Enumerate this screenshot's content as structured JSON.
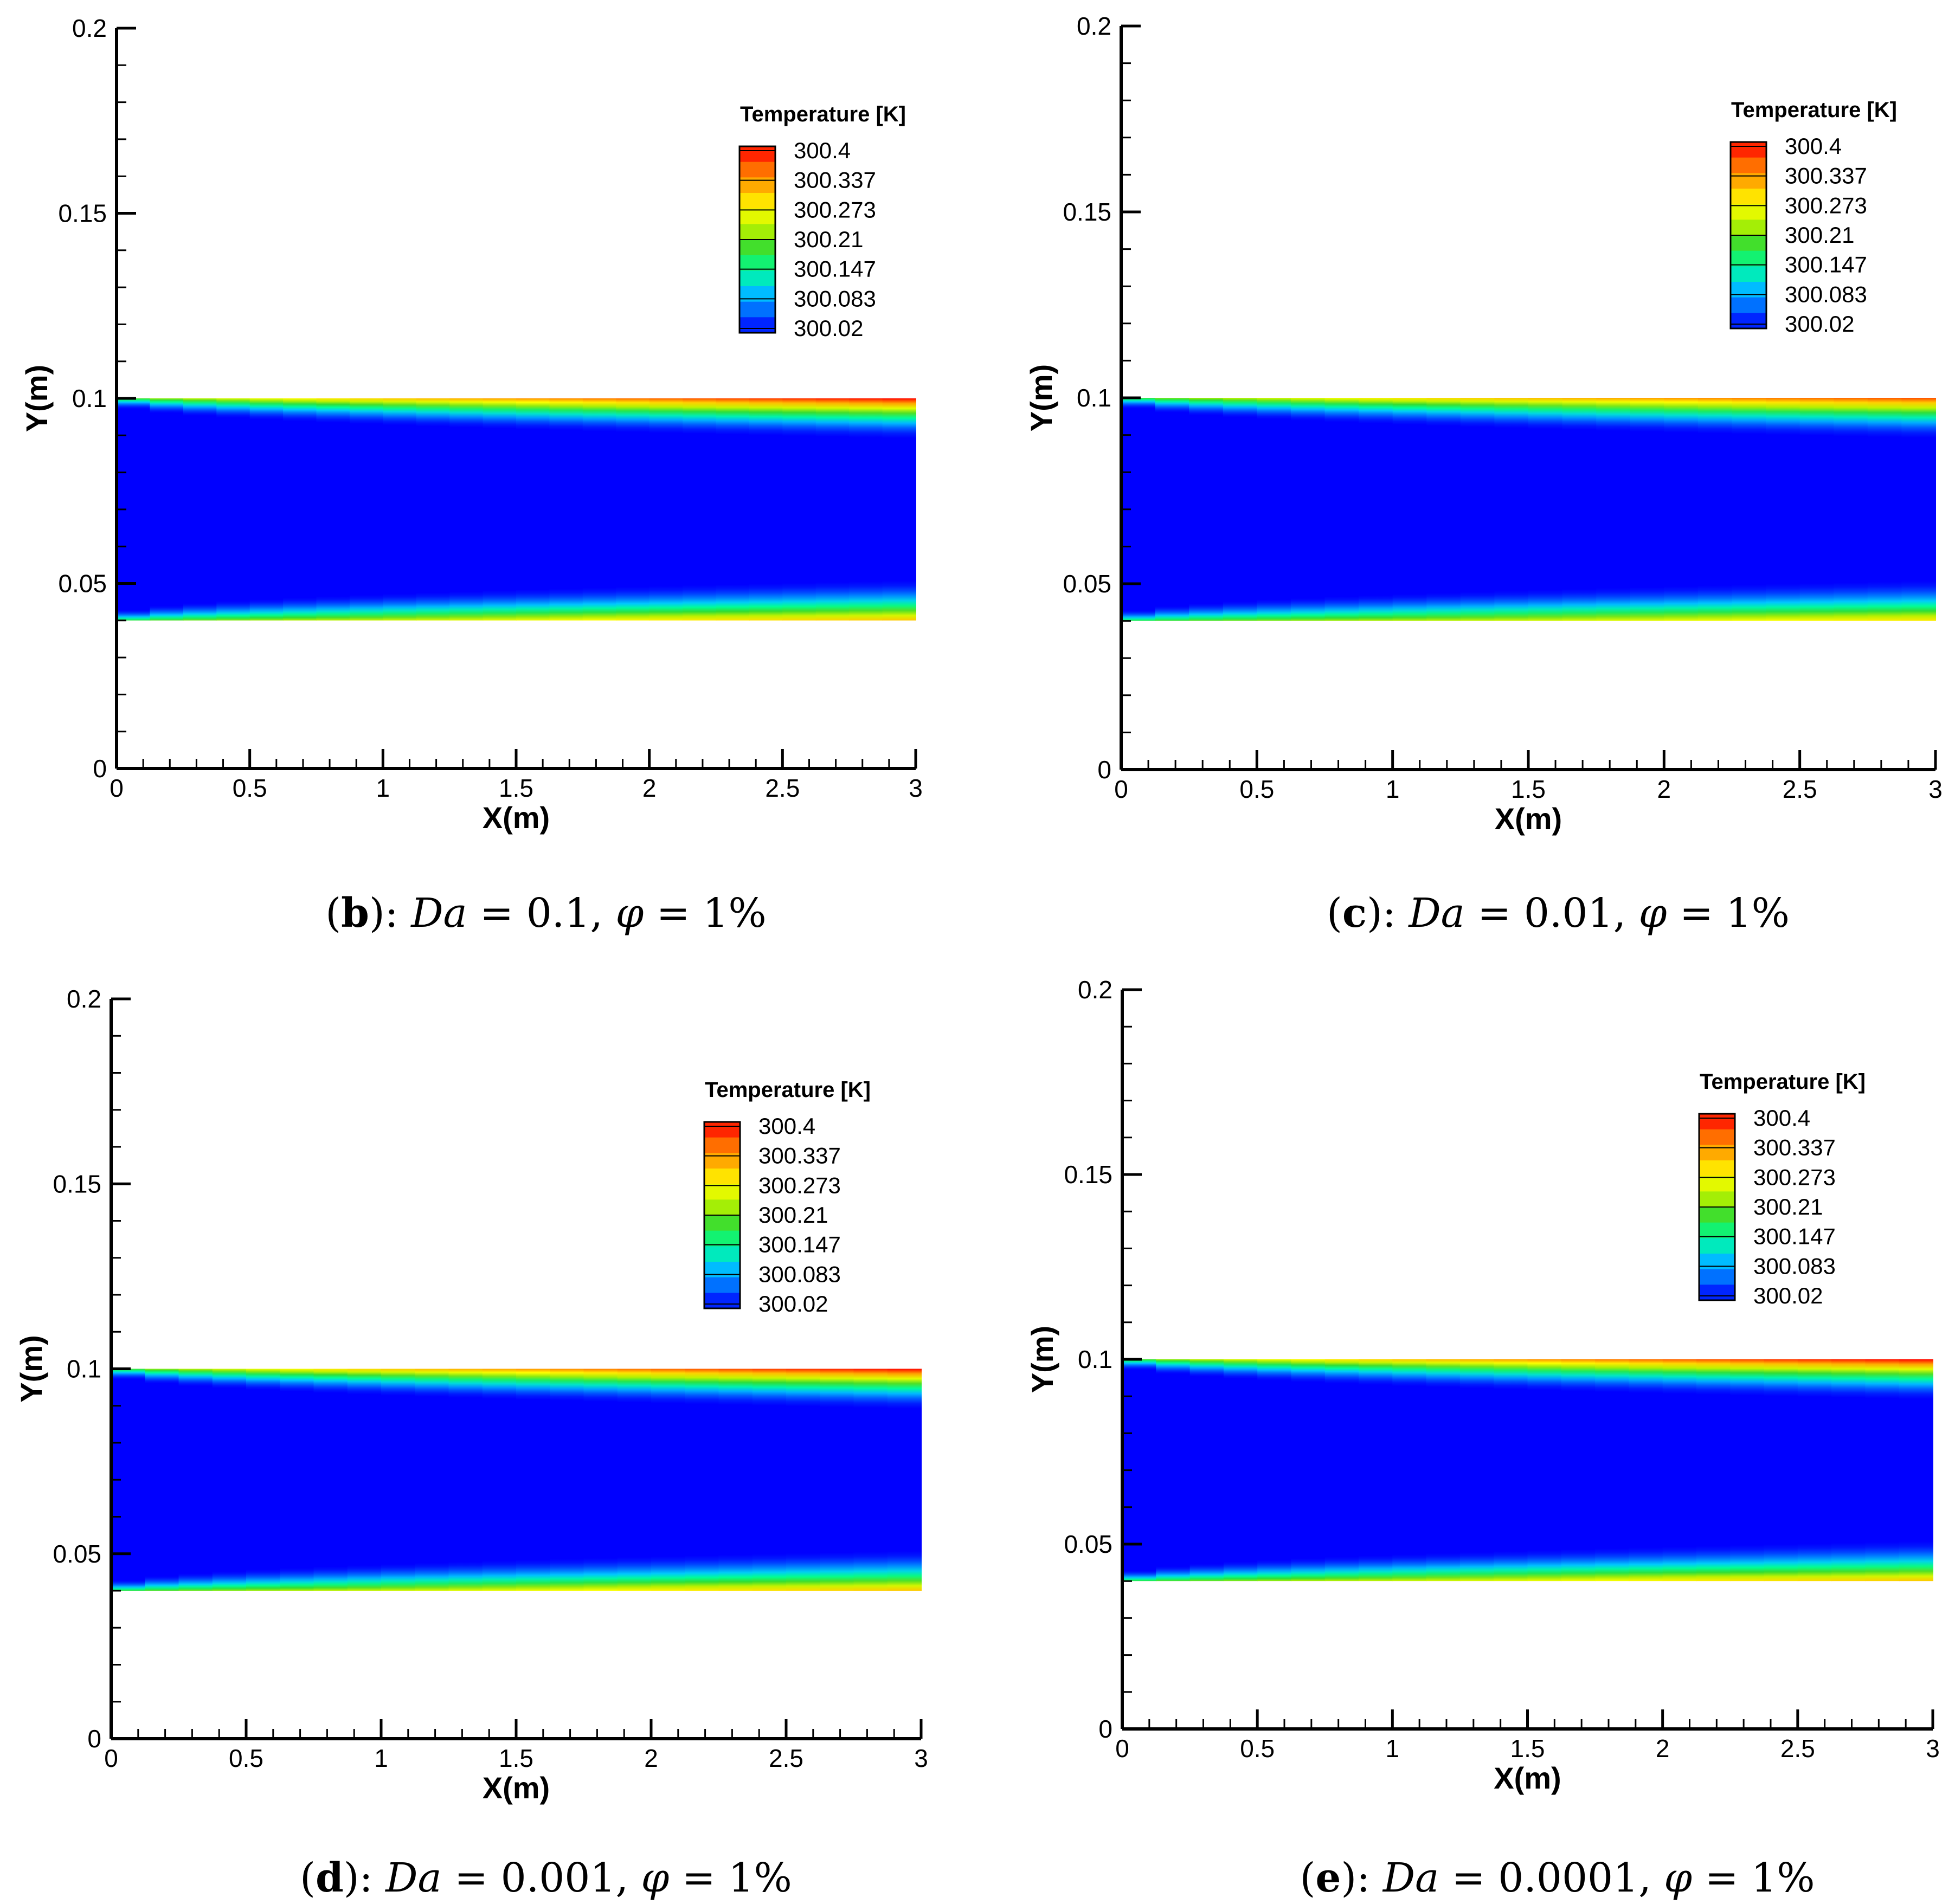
{
  "chart_data": [
    {
      "type": "heatmap",
      "panel": "b",
      "caption": {
        "panel_label": "b",
        "da_label": "Da",
        "da_value": "0.1",
        "phi_label": "φ",
        "phi_value": "1%"
      },
      "xlabel": "X(m)",
      "ylabel": "Y(m)",
      "xlim": [
        0,
        3
      ],
      "ylim": [
        0,
        0.2
      ],
      "xticks": [
        "0",
        "0.5",
        "1",
        "1.5",
        "2",
        "2.5",
        "3"
      ],
      "yticks": [
        "0",
        "0.05",
        "0.1",
        "0.15",
        "0.2"
      ],
      "domain_x": [
        0,
        3
      ],
      "domain_y": [
        0.04,
        0.1
      ],
      "field": {
        "t_min": 300.0,
        "t_max": 300.4,
        "wall_temp_inlet": 300.15,
        "wall_temp_outlet_top": 300.4,
        "wall_temp_outlet_bottom": 300.3,
        "core_temp": 300.0
      },
      "legend": {
        "title": "Temperature [K]",
        "levels": [
          "300.4",
          "300.337",
          "300.273",
          "300.21",
          "300.147",
          "300.083",
          "300.02"
        ]
      }
    },
    {
      "type": "heatmap",
      "panel": "c",
      "caption": {
        "panel_label": "c",
        "da_label": "Da",
        "da_value": "0.01",
        "phi_label": "φ",
        "phi_value": "1%"
      },
      "xlabel": "X(m)",
      "ylabel": "Y(m)",
      "xlim": [
        0,
        3
      ],
      "ylim": [
        0,
        0.2
      ],
      "xticks": [
        "0",
        "0.5",
        "1",
        "1.5",
        "2",
        "2.5",
        "3"
      ],
      "yticks": [
        "0",
        "0.05",
        "0.1",
        "0.15",
        "0.2"
      ],
      "domain_x": [
        0,
        3
      ],
      "domain_y": [
        0.04,
        0.1
      ],
      "field": {
        "t_min": 300.0,
        "t_max": 300.4,
        "wall_temp_inlet": 300.15,
        "wall_temp_outlet_top": 300.37,
        "wall_temp_outlet_bottom": 300.28,
        "core_temp": 300.0
      },
      "legend": {
        "title": "Temperature [K]",
        "levels": [
          "300.4",
          "300.337",
          "300.273",
          "300.21",
          "300.147",
          "300.083",
          "300.02"
        ]
      }
    },
    {
      "type": "heatmap",
      "panel": "d",
      "caption": {
        "panel_label": "d",
        "da_label": "Da",
        "da_value": "0.001",
        "phi_label": "φ",
        "phi_value": "1%"
      },
      "xlabel": "X(m)",
      "ylabel": "Y(m)",
      "xlim": [
        0,
        3
      ],
      "ylim": [
        0,
        0.2
      ],
      "xticks": [
        "0",
        "0.5",
        "1",
        "1.5",
        "2",
        "2.5",
        "3"
      ],
      "yticks": [
        "0",
        "0.05",
        "0.1",
        "0.15",
        "0.2"
      ],
      "domain_x": [
        0,
        3
      ],
      "domain_y": [
        0.04,
        0.1
      ],
      "field": {
        "t_min": 300.0,
        "t_max": 300.4,
        "wall_temp_inlet": 300.15,
        "wall_temp_outlet_top": 300.4,
        "wall_temp_outlet_bottom": 300.3,
        "core_temp": 300.0
      },
      "legend": {
        "title": "Temperature [K]",
        "levels": [
          "300.4",
          "300.337",
          "300.273",
          "300.21",
          "300.147",
          "300.083",
          "300.02"
        ]
      }
    },
    {
      "type": "heatmap",
      "panel": "e",
      "caption": {
        "panel_label": "e",
        "da_label": "Da",
        "da_value": "0.0001",
        "phi_label": "φ",
        "phi_value": "1%"
      },
      "xlabel": "X(m)",
      "ylabel": "Y(m)",
      "xlim": [
        0,
        3
      ],
      "ylim": [
        0,
        0.2
      ],
      "xticks": [
        "0",
        "0.5",
        "1",
        "1.5",
        "2",
        "2.5",
        "3"
      ],
      "yticks": [
        "0",
        "0.05",
        "0.1",
        "0.15",
        "0.2"
      ],
      "domain_x": [
        0,
        3
      ],
      "domain_y": [
        0.04,
        0.1
      ],
      "field": {
        "t_min": 300.0,
        "t_max": 300.4,
        "wall_temp_inlet": 300.15,
        "wall_temp_outlet_top": 300.4,
        "wall_temp_outlet_bottom": 300.3,
        "core_temp": 300.0
      },
      "legend": {
        "title": "Temperature [K]",
        "levels": [
          "300.4",
          "300.337",
          "300.273",
          "300.21",
          "300.147",
          "300.083",
          "300.02"
        ]
      }
    }
  ],
  "colormap": [
    "#0000ff",
    "#0064ff",
    "#00c8ff",
    "#00ff96",
    "#32dc32",
    "#b4f000",
    "#ffff00",
    "#ffb400",
    "#ff6400",
    "#ff0000"
  ]
}
